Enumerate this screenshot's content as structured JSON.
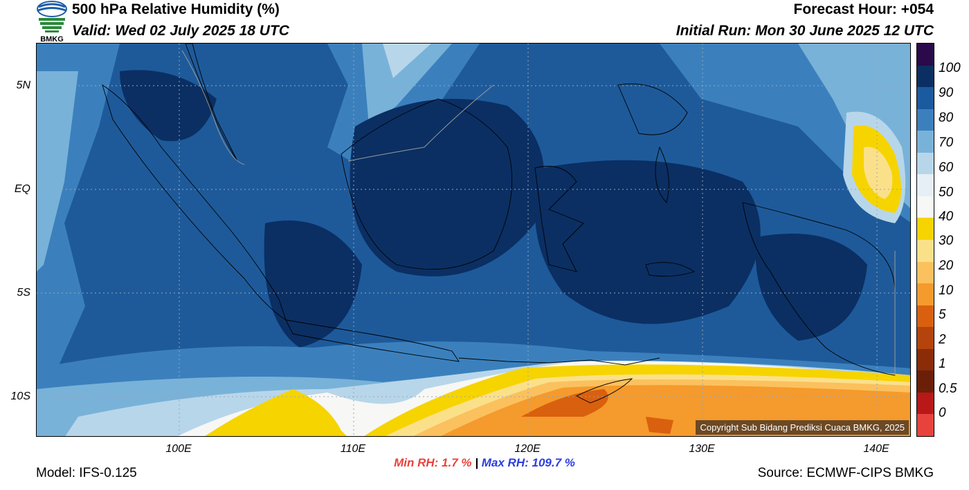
{
  "header": {
    "title": "500 hPa Relative Humidity (%)",
    "valid": "Valid: Wed 02 July 2025 18 UTC",
    "forecast_hour": "Forecast Hour: +054",
    "initial_run": "Initial Run: Mon 30 June 2025 12 UTC"
  },
  "logo": {
    "text": "BMKG"
  },
  "map": {
    "lat_labels": [
      "5N",
      "EQ",
      "5S",
      "10S"
    ],
    "lon_labels": [
      "100E",
      "110E",
      "120E",
      "130E",
      "140E"
    ],
    "copyright": "Copyright Sub Bidang Prediksi Cuaca BMKG, 2025"
  },
  "colorbar": {
    "labels": [
      "100",
      "90",
      "80",
      "70",
      "60",
      "50",
      "40",
      "30",
      "20",
      "10",
      "5",
      "2",
      "1",
      "0.5",
      "0"
    ],
    "colors": [
      "#2a0a4a",
      "#0b2f63",
      "#1b5a9e",
      "#3b80bd",
      "#79b2d8",
      "#b8d6ea",
      "#e6eff5",
      "#f7f7f5",
      "#f6d400",
      "#fbe08a",
      "#fbc15e",
      "#f59a2c",
      "#d9600e",
      "#b5430c",
      "#8a2c08",
      "#6b1f08",
      "#b81818",
      "#e8423c"
    ]
  },
  "stats": {
    "min_label": "Min RH:",
    "min_value": "1.7 %",
    "separator": "|",
    "max_text": "Max RH: 109.7 %"
  },
  "footer": {
    "model": "Model: IFS-0.125",
    "source": "Source: ECMWF-CIPS BMKG"
  }
}
